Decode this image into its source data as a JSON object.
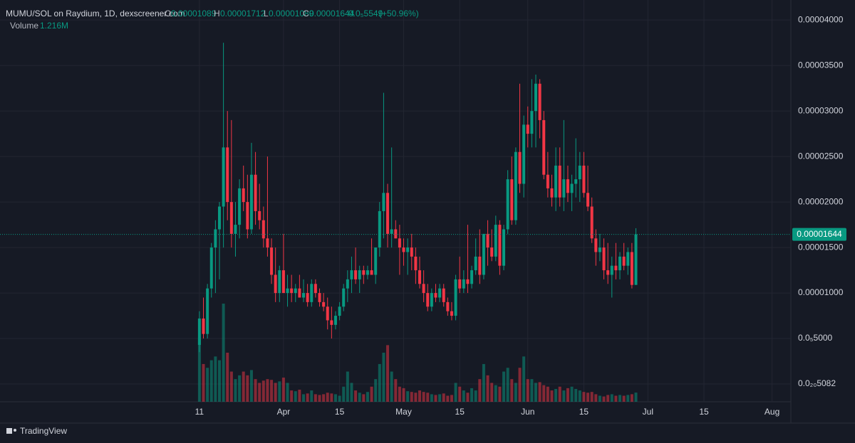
{
  "chart_data": {
    "type": "candlestick",
    "legend": {
      "symbol": "MUMU/SOL on Raydium, 1D, dexscreener.com",
      "o": "O",
      "h": "H",
      "l": "L",
      "c": "C",
      "change": {
        "value": 5.549e-06,
        "label": "0.0₅5549"
      },
      "change_pct": "(+50.96%)",
      "volume_title": "Volume",
      "volume": {
        "value": 1216000,
        "label": "1.216M"
      }
    },
    "brand": "TradingView",
    "up_color": "#089981",
    "down_color": "#f23645",
    "grid": true,
    "xlim": [
      -49.8,
      147.7
    ],
    "xticks": [
      {
        "value": 0,
        "label": "11"
      },
      {
        "value": 21,
        "label": "Apr"
      },
      {
        "value": 35,
        "label": "15"
      },
      {
        "value": 51,
        "label": "May"
      },
      {
        "value": 65,
        "label": "15"
      },
      {
        "value": 82,
        "label": "Jun"
      },
      {
        "value": 96,
        "label": "15"
      },
      {
        "value": 112,
        "label": "Jul"
      },
      {
        "value": 126,
        "label": "15"
      },
      {
        "value": 143,
        "label": "Aug"
      }
    ],
    "ylim": [
      -1.95e-06,
      4.22e-05
    ],
    "yticks": [
      {
        "value": 4e-05,
        "label": "0.00004000"
      },
      {
        "value": 3.5e-05,
        "label": "0.00003500"
      },
      {
        "value": 3e-05,
        "label": "0.00003000"
      },
      {
        "value": 2.5e-05,
        "label": "0.00002500"
      },
      {
        "value": 2e-05,
        "label": "0.00002000"
      },
      {
        "value": 1.5e-05,
        "label": "0.00001500"
      },
      {
        "value": 1e-05,
        "label": "0.00001000"
      },
      {
        "value": 5e-06,
        "label": "0.0₅5000"
      },
      {
        "value": 5.082e-21,
        "label": "0.0₂₀5082"
      }
    ],
    "open": [
      4.3e-06,
      7.2e-06,
      5.5e-06,
      1.05e-05,
      1.5e-05,
      1.7e-05,
      1.95e-05,
      2.6e-05,
      2e-05,
      1.65e-05,
      1.75e-05,
      2.15e-05,
      2e-05,
      1.7e-05,
      2.3e-05,
      1.9e-05,
      1.8e-05,
      1.6e-05,
      1.5e-05,
      1.2e-05,
      1e-05,
      1.25e-05,
      1e-05,
      1.05e-05,
      1e-05,
      1.05e-05,
      9.5e-06,
      1e-05,
      9e-06,
      1.1e-05,
      1e-05,
      9e-06,
      8.5e-06,
      7e-06,
      6.5e-06,
      7.5e-06,
      8.5e-06,
      1.05e-05,
      1.15e-05,
      1.25e-05,
      1.15e-05,
      1.25e-05,
      1.2e-05,
      1.25e-05,
      1.2e-05,
      1.5e-05,
      1.9e-05,
      2.1e-05,
      1.65e-05,
      1.7e-05,
      1.6e-05,
      1.5e-05,
      1.45e-05,
      1.5e-05,
      1.4e-05,
      1.25e-05,
      1.1e-05,
      1e-05,
      8.5e-06,
      1e-05,
      9.5e-06,
      1.05e-05,
      9e-06,
      8e-06,
      7.5e-06,
      1.15e-05,
      1.05e-05,
      1.15e-05,
      1.1e-05,
      1.25e-05,
      1.4e-05,
      1.2e-05,
      1.65e-05,
      1.5e-05,
      1.4e-05,
      1.75e-05,
      1.3e-05,
      1.7e-05,
      2.25e-05,
      1.8e-05,
      2.55e-05,
      2.2e-05,
      2.85e-05,
      2.75e-05,
      3e-05,
      3.3e-05,
      2.9e-05,
      2.3e-05,
      2.15e-05,
      2.05e-05,
      2.4e-05,
      2.05e-05,
      2.25e-05,
      2.1e-05,
      2.2e-05,
      2.25e-05,
      2.4e-05,
      2.1e-05,
      1.95e-05,
      1.6e-05,
      1.45e-05,
      1.5e-05,
      1.25e-05,
      1.2e-05,
      1.3e-05,
      1.25e-05,
      1.4e-05,
      1.3e-05,
      1.45e-05,
      1.089e-05
    ],
    "high": [
      8e-06,
      9.5e-06,
      1.1e-05,
      1.55e-05,
      1.8e-05,
      2e-05,
      3.75e-05,
      3e-05,
      2.9e-05,
      2e-05,
      2.25e-05,
      2.4e-05,
      2.3e-05,
      2.65e-05,
      2.55e-05,
      2.2e-05,
      1.95e-05,
      2.5e-05,
      1.6e-05,
      1.5e-05,
      1.3e-05,
      1.65e-05,
      1.2e-05,
      1.2e-05,
      1.1e-05,
      1.2e-05,
      1.15e-05,
      1.1e-05,
      1.15e-05,
      1.15e-05,
      1.05e-05,
      1e-05,
      9.5e-06,
      8.5e-06,
      8e-06,
      9e-06,
      1.1e-05,
      1.25e-05,
      1.4e-05,
      1.5e-05,
      1.3e-05,
      1.3e-05,
      1.3e-05,
      1.6e-05,
      1.5e-05,
      2e-05,
      3.2e-05,
      2.2e-05,
      2.6e-05,
      1.8e-05,
      1.75e-05,
      1.6e-05,
      1.6e-05,
      1.65e-05,
      1.5e-05,
      1.4e-05,
      1.25e-05,
      1.1e-05,
      1.05e-05,
      1.1e-05,
      1.1e-05,
      1.1e-05,
      9.5e-06,
      9e-06,
      1.2e-05,
      1.4e-05,
      1.25e-05,
      1.75e-05,
      1.3e-05,
      1.6e-05,
      1.7e-05,
      1.65e-05,
      1.8e-05,
      1.7e-05,
      1.85e-05,
      1.8e-05,
      1.75e-05,
      2.35e-05,
      2.5e-05,
      2.6e-05,
      3.3e-05,
      2.95e-05,
      3.05e-05,
      3.35e-05,
      3.4e-05,
      3.35e-05,
      3e-05,
      2.55e-05,
      2.3e-05,
      2.6e-05,
      2.6e-05,
      2.9e-05,
      2.4e-05,
      2.3e-05,
      2.7e-05,
      2.55e-05,
      2.55e-05,
      2.4e-05,
      2.05e-05,
      1.7e-05,
      1.65e-05,
      1.6e-05,
      1.55e-05,
      1.4e-05,
      1.55e-05,
      1.45e-05,
      1.55e-05,
      1.5e-05,
      1.55e-05,
      1.712e-05
    ],
    "low": [
      3.5e-06,
      5e-06,
      5e-06,
      9.5e-06,
      1e-05,
      1.15e-05,
      1.5e-05,
      1.8e-05,
      1.5e-05,
      1.4e-05,
      1.6e-05,
      1.9e-05,
      1.6e-05,
      1.65e-05,
      1.75e-05,
      1.7e-05,
      1.5e-05,
      1.4e-05,
      1.1e-05,
      9e-06,
      9e-06,
      1e-05,
      8.5e-06,
      9e-06,
      9e-06,
      9.5e-06,
      9e-06,
      8.5e-06,
      8.5e-06,
      9.5e-06,
      8.5e-06,
      8e-06,
      6e-06,
      5e-06,
      6e-06,
      7e-06,
      8e-06,
      9e-06,
      1e-05,
      1.1e-05,
      1e-05,
      1.1e-05,
      1.15e-05,
      1.2e-05,
      1.1e-05,
      1.4e-05,
      1.6e-05,
      1.5e-05,
      1.5e-05,
      1.6e-05,
      1.2e-05,
      1.3e-05,
      1.2e-05,
      1.25e-05,
      1.1e-05,
      1.05e-05,
      9e-06,
      8e-06,
      8e-06,
      9e-06,
      9e-06,
      8.5e-06,
      7.5e-06,
      7e-06,
      7e-06,
      1e-05,
      1e-05,
      1e-05,
      1.05e-05,
      1.2e-05,
      1.1e-05,
      1.15e-05,
      1.3e-05,
      1.35e-05,
      1.35e-05,
      1.2e-05,
      1.25e-05,
      1.65e-05,
      1.75e-05,
      1.75e-05,
      2.1e-05,
      2.05e-05,
      2.6e-05,
      2.6e-05,
      2.6e-05,
      2.7e-05,
      2.25e-05,
      2.05e-05,
      1.95e-05,
      1.9e-05,
      1.95e-05,
      1.9e-05,
      2e-05,
      1.9e-05,
      2.05e-05,
      2e-05,
      2.05e-05,
      1.9e-05,
      1.55e-05,
      1.3e-05,
      1.35e-05,
      1.15e-05,
      1.1e-05,
      9.5e-06,
      1.15e-05,
      1.15e-05,
      1.25e-05,
      1.2e-05,
      1.05e-05,
      1.089e-05
    ],
    "close": [
      7.2e-06,
      5.5e-06,
      1.05e-05,
      1.5e-05,
      1.7e-05,
      1.95e-05,
      2.6e-05,
      2e-05,
      1.65e-05,
      1.75e-05,
      2.15e-05,
      2e-05,
      1.7e-05,
      2.3e-05,
      1.9e-05,
      1.8e-05,
      1.6e-05,
      1.5e-05,
      1.2e-05,
      1e-05,
      1.25e-05,
      1e-05,
      1.05e-05,
      1e-05,
      1.05e-05,
      9.5e-06,
      1e-05,
      9e-06,
      1.1e-05,
      1e-05,
      9e-06,
      8.5e-06,
      7e-06,
      6.5e-06,
      7.5e-06,
      8.5e-06,
      1.05e-05,
      1.15e-05,
      1.25e-05,
      1.15e-05,
      1.25e-05,
      1.2e-05,
      1.25e-05,
      1.2e-05,
      1.5e-05,
      1.9e-05,
      2.1e-05,
      1.65e-05,
      1.7e-05,
      1.6e-05,
      1.5e-05,
      1.45e-05,
      1.5e-05,
      1.4e-05,
      1.25e-05,
      1.1e-05,
      1e-05,
      8.5e-06,
      1e-05,
      9.5e-06,
      1.05e-05,
      9e-06,
      8e-06,
      7.5e-06,
      1.15e-05,
      1.05e-05,
      1.15e-05,
      1.1e-05,
      1.25e-05,
      1.4e-05,
      1.2e-05,
      1.65e-05,
      1.5e-05,
      1.4e-05,
      1.75e-05,
      1.3e-05,
      1.7e-05,
      2.25e-05,
      1.8e-05,
      2.55e-05,
      2.2e-05,
      2.85e-05,
      2.75e-05,
      3e-05,
      3.3e-05,
      2.9e-05,
      2.3e-05,
      2.15e-05,
      2.05e-05,
      2.4e-05,
      2.05e-05,
      2.25e-05,
      2.1e-05,
      2.2e-05,
      2.25e-05,
      2.4e-05,
      2.1e-05,
      1.95e-05,
      1.6e-05,
      1.45e-05,
      1.5e-05,
      1.25e-05,
      1.2e-05,
      1.3e-05,
      1.25e-05,
      1.4e-05,
      1.3e-05,
      1.45e-05,
      1.089e-05,
      1.644e-05
    ],
    "volume": [
      8500000.0,
      5000000.0,
      4500000.0,
      5500000.0,
      6000000.0,
      5500000.0,
      13000000.0,
      6500000.0,
      4000000.0,
      3000000.0,
      3500000.0,
      4000000.0,
      3500000.0,
      4200000.0,
      3000000.0,
      2500000.0,
      2800000.0,
      3000000.0,
      2900000.0,
      2500000.0,
      2700000.0,
      3200000.0,
      2500000.0,
      1500000.0,
      1400000.0,
      1600000.0,
      1000000.0,
      1100000.0,
      1500000.0,
      1000000.0,
      900000.0,
      1000000.0,
      1200000.0,
      1100000.0,
      1000000.0,
      800000.0,
      2000000.0,
      4000000.0,
      2500000.0,
      1500000.0,
      1200000.0,
      1000000.0,
      1300000.0,
      2000000.0,
      3000000.0,
      5000000.0,
      6500000.0,
      7500000.0,
      4000000.0,
      3000000.0,
      2000000.0,
      1800000.0,
      1400000.0,
      1300000.0,
      1200000.0,
      1500000.0,
      1300000.0,
      1200000.0,
      1000000.0,
      900000.0,
      1000000.0,
      1100000.0,
      800000.0,
      900000.0,
      2500000.0,
      2000000.0,
      1500000.0,
      1200000.0,
      1800000.0,
      1500000.0,
      3000000.0,
      5000000.0,
      3500000.0,
      2500000.0,
      2200000.0,
      2000000.0,
      4000000.0,
      4500000.0,
      3000000.0,
      2500000.0,
      4500000.0,
      6000000.0,
      3000000.0,
      3000000.0,
      2500000.0,
      2600000.0,
      2200000.0,
      2000000.0,
      1500000.0,
      1700000.0,
      2000000.0,
      1500000.0,
      1800000.0,
      2000000.0,
      1700000.0,
      1500000.0,
      1300000.0,
      1200000.0,
      1300000.0,
      1000000.0,
      800000.0,
      700000.0,
      900000.0,
      1000000.0,
      800000.0,
      900000.0,
      800000.0,
      900000.0,
      1000000.0,
      1216000
    ]
  }
}
